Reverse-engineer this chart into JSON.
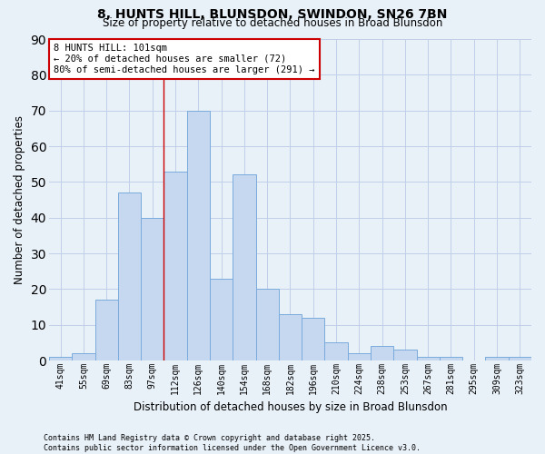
{
  "title1": "8, HUNTS HILL, BLUNSDON, SWINDON, SN26 7BN",
  "title2": "Size of property relative to detached houses in Broad Blunsdon",
  "xlabel": "Distribution of detached houses by size in Broad Blunsdon",
  "ylabel": "Number of detached properties",
  "categories": [
    "41sqm",
    "55sqm",
    "69sqm",
    "83sqm",
    "97sqm",
    "112sqm",
    "126sqm",
    "140sqm",
    "154sqm",
    "168sqm",
    "182sqm",
    "196sqm",
    "210sqm",
    "224sqm",
    "238sqm",
    "253sqm",
    "267sqm",
    "281sqm",
    "295sqm",
    "309sqm",
    "323sqm"
  ],
  "values": [
    1,
    2,
    17,
    47,
    40,
    53,
    70,
    23,
    52,
    20,
    13,
    12,
    5,
    2,
    4,
    3,
    1,
    1,
    0,
    1,
    1
  ],
  "bar_color": "#c5d8f0",
  "bar_edge_color": "#7aabdc",
  "vline_x_index": 4.5,
  "annotation_line1": "8 HUNTS HILL: 101sqm",
  "annotation_line2": "← 20% of detached houses are smaller (72)",
  "annotation_line3": "80% of semi-detached houses are larger (291) →",
  "annotation_box_color": "#ffffff",
  "annotation_box_edge_color": "#cc0000",
  "vline_color": "#cc0000",
  "ylim": [
    0,
    90
  ],
  "yticks": [
    0,
    10,
    20,
    30,
    40,
    50,
    60,
    70,
    80,
    90
  ],
  "grid_color": "#c0d0e8",
  "bg_color": "#e8f0f8",
  "footer_line1": "Contains HM Land Registry data © Crown copyright and database right 2025.",
  "footer_line2": "Contains public sector information licensed under the Open Government Licence v3.0."
}
